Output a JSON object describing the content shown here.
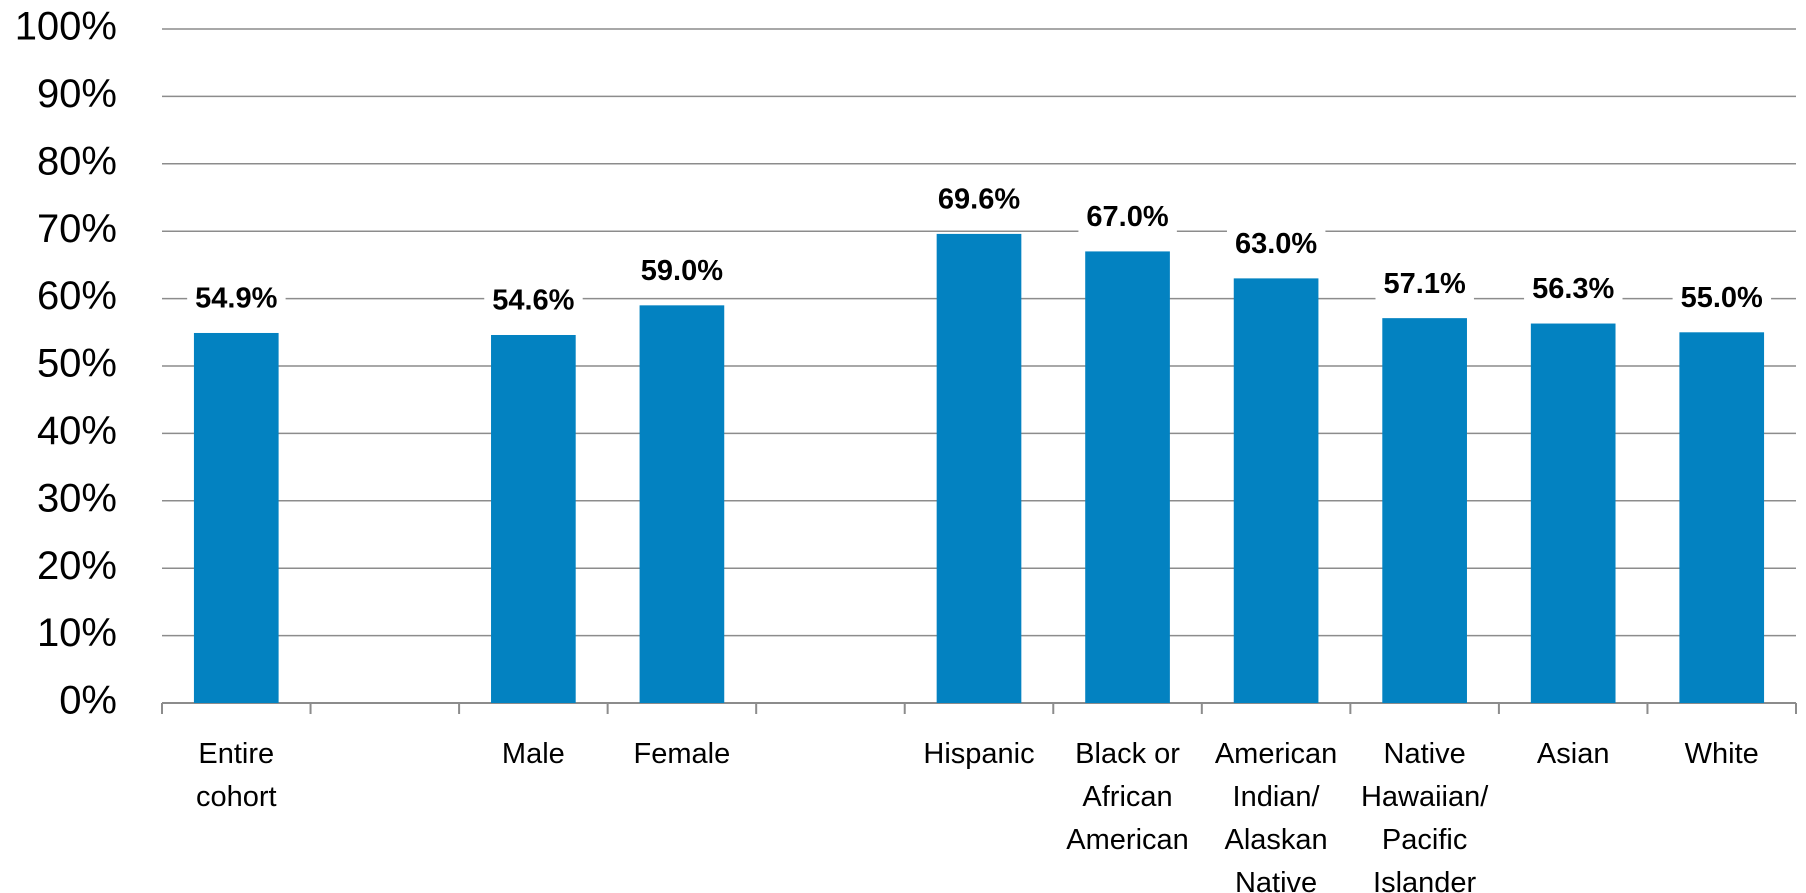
{
  "chart_data": {
    "type": "bar",
    "categories": [
      "Entire cohort",
      null,
      "Male",
      "Female",
      null,
      "Hispanic",
      "Black or African American",
      "American Indian/ Alaskan Native",
      "Native Hawaiian/ Pacific Islander",
      "Asian",
      "White"
    ],
    "values": [
      54.9,
      null,
      54.6,
      59.0,
      null,
      69.6,
      67.0,
      63.0,
      57.1,
      56.3,
      55.0
    ],
    "value_labels": [
      "54.9%",
      null,
      "54.6%",
      "59.0%",
      null,
      "69.6%",
      "67.0%",
      "63.0%",
      "57.1%",
      "56.3%",
      "55.0%"
    ],
    "color": "#0382c1",
    "ylim": [
      0,
      100
    ],
    "yticks": [
      {
        "value": 0,
        "label": "0%"
      },
      {
        "value": 10,
        "label": "10%"
      },
      {
        "value": 20,
        "label": "20%"
      },
      {
        "value": 30,
        "label": "30%"
      },
      {
        "value": 40,
        "label": "40%"
      },
      {
        "value": 50,
        "label": "50%"
      },
      {
        "value": 60,
        "label": "60%"
      },
      {
        "value": 70,
        "label": "70%"
      },
      {
        "value": 80,
        "label": "80%"
      },
      {
        "value": 90,
        "label": "90%"
      },
      {
        "value": 100,
        "label": "100%"
      }
    ],
    "grid": true
  }
}
